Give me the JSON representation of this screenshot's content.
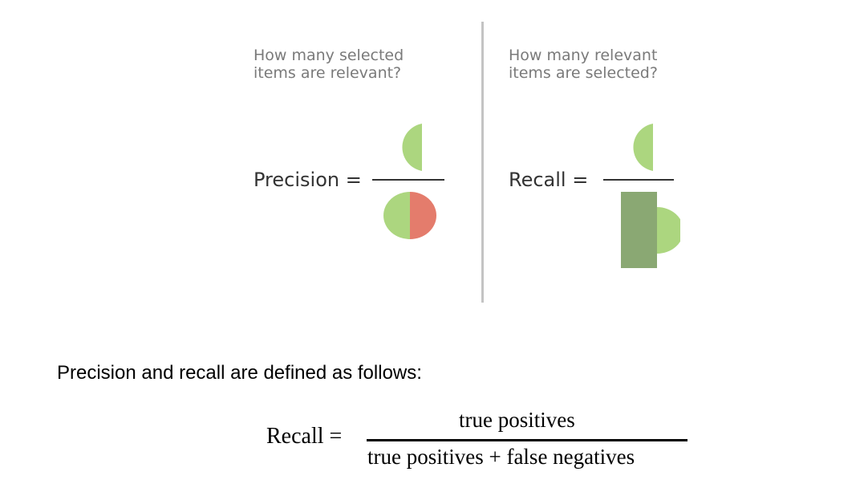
{
  "precision_panel": {
    "question_line1": "How many selected",
    "question_line2": "items are relevant?",
    "label": "Precision ="
  },
  "recall_panel": {
    "question_line1": "How many relevant",
    "question_line2": "items are selected?",
    "label": "Recall ="
  },
  "colors": {
    "true_positive": "#acd67f",
    "false_positive": "#e47c6c",
    "false_negative": "#8aa873",
    "divider": "#c4c4c4"
  },
  "definition": {
    "intro": "Precision and recall are defined as follows:",
    "lhs": "Recall =",
    "numerator": "true positives",
    "denominator": "true positives + false negatives"
  }
}
